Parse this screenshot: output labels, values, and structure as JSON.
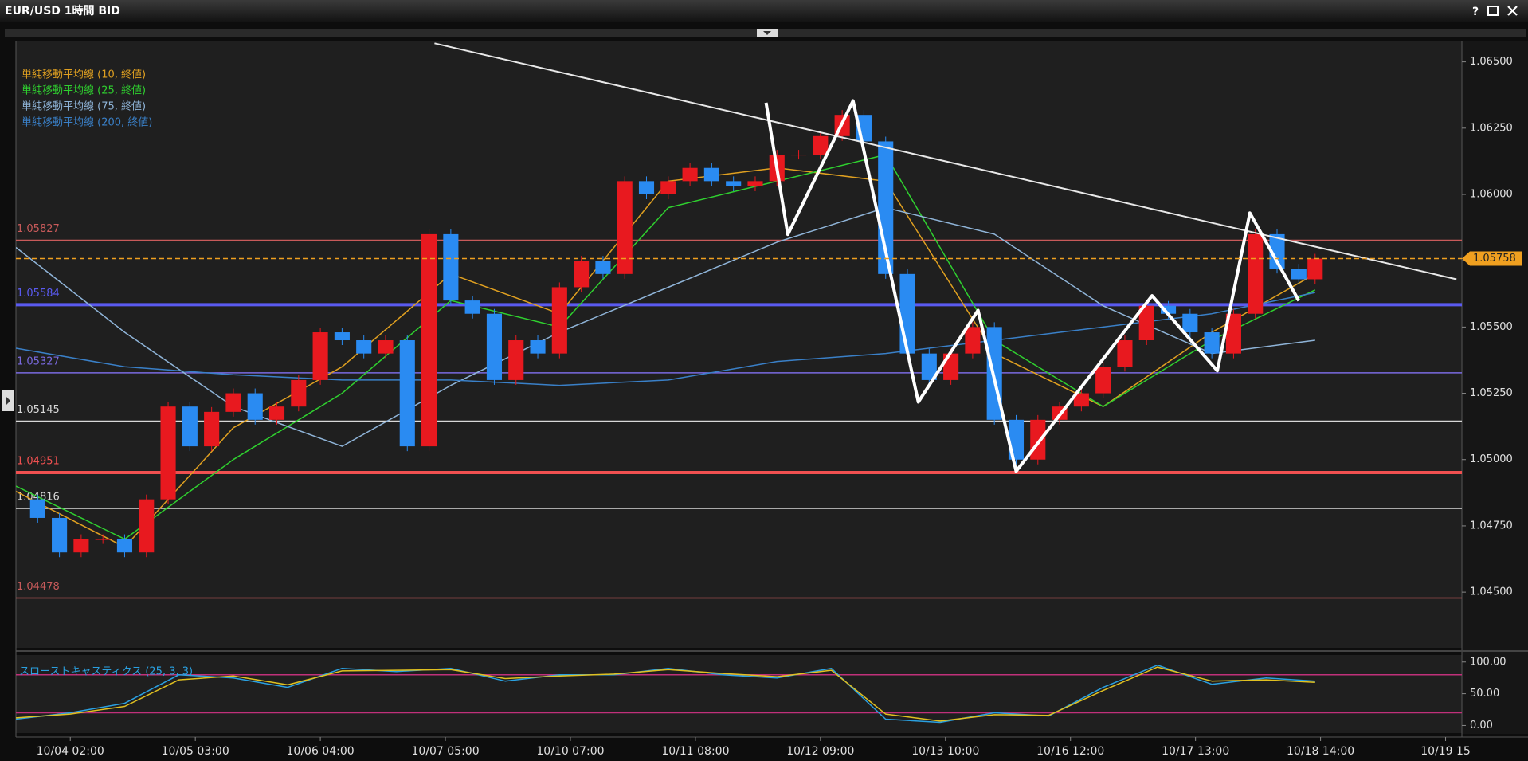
{
  "help_button": "?",
  "chart_data": {
    "type": "candlestick",
    "title": "EUR/USD 1時間 BID",
    "up_color": "#e8191f",
    "down_color": "#2a8bf2",
    "xlim": [
      0,
      266
    ],
    "xticks": [
      {
        "value": 10,
        "label": "10/04 02:00"
      },
      {
        "value": 33,
        "label": "10/05 03:00"
      },
      {
        "value": 56,
        "label": "10/06 04:00"
      },
      {
        "value": 79,
        "label": "10/07 05:00"
      },
      {
        "value": 102,
        "label": "10/10 07:00"
      },
      {
        "value": 125,
        "label": "10/11 08:00"
      },
      {
        "value": 148,
        "label": "10/12 09:00"
      },
      {
        "value": 171,
        "label": "10/13 10:00"
      },
      {
        "value": 194,
        "label": "10/16 12:00"
      },
      {
        "value": 217,
        "label": "10/17 13:00"
      },
      {
        "value": 240,
        "label": "10/18 14:00"
      },
      {
        "value": 263,
        "label": "10/19 15"
      }
    ],
    "ylim": [
      1.0429,
      1.0658
    ],
    "yticks": [
      {
        "value": 1.065,
        "label": "1.06500"
      },
      {
        "value": 1.0625,
        "label": "1.06250"
      },
      {
        "value": 1.06,
        "label": "1.06000"
      },
      {
        "value": 1.0575,
        "label": "1.05750"
      },
      {
        "value": 1.055,
        "label": "1.05500"
      },
      {
        "value": 1.0525,
        "label": "1.05250"
      },
      {
        "value": 1.05,
        "label": "1.05000"
      },
      {
        "value": 1.0475,
        "label": "1.04750"
      },
      {
        "value": 1.045,
        "label": "1.04500"
      }
    ],
    "x": [
      0,
      4,
      8,
      12,
      16,
      20,
      24,
      28,
      32,
      36,
      40,
      44,
      48,
      52,
      56,
      60,
      64,
      68,
      72,
      76,
      80,
      84,
      88,
      92,
      96,
      100,
      104,
      108,
      112,
      116,
      120,
      124,
      128,
      132,
      136,
      140,
      144,
      148,
      152,
      156,
      160,
      164,
      168,
      172,
      176,
      180,
      184,
      188,
      192,
      196,
      200,
      204,
      208,
      212,
      216,
      220,
      224,
      228,
      232,
      236,
      239
    ],
    "values": [
      1.0485,
      1.0478,
      1.0465,
      1.047,
      1.047,
      1.0465,
      1.0485,
      1.052,
      1.0505,
      1.0518,
      1.0525,
      1.0515,
      1.052,
      1.053,
      1.0548,
      1.0545,
      1.054,
      1.0545,
      1.0505,
      1.0585,
      1.056,
      1.0555,
      1.053,
      1.0545,
      1.054,
      1.0565,
      1.0575,
      1.057,
      1.0605,
      1.06,
      1.0605,
      1.061,
      1.0605,
      1.0603,
      1.0605,
      1.0615,
      1.0615,
      1.0622,
      1.063,
      1.062,
      1.057,
      1.054,
      1.053,
      1.054,
      1.055,
      1.0515,
      1.05,
      1.0515,
      1.052,
      1.0525,
      1.0535,
      1.0545,
      1.0558,
      1.0555,
      1.0548,
      1.054,
      1.0555,
      1.0585,
      1.0572,
      1.0568,
      1.05758
    ],
    "last_price": 1.05758,
    "last_color": "#f0a020",
    "moving_averages": [
      {
        "name": "単純移動平均線 (10, 終値)",
        "color": "#e0a020",
        "x": [
          0,
          20,
          40,
          60,
          80,
          100,
          120,
          140,
          160,
          180,
          200,
          220,
          239
        ],
        "values": [
          1.0488,
          1.0467,
          1.0512,
          1.0535,
          1.057,
          1.0555,
          1.0605,
          1.061,
          1.0605,
          1.054,
          1.052,
          1.0548,
          1.057
        ]
      },
      {
        "name": "単純移動平均線 (25, 終値)",
        "color": "#2fd02f",
        "x": [
          0,
          20,
          40,
          60,
          80,
          100,
          120,
          140,
          160,
          180,
          200,
          220,
          239
        ],
        "values": [
          1.049,
          1.047,
          1.05,
          1.0525,
          1.056,
          1.055,
          1.0595,
          1.0605,
          1.0615,
          1.0545,
          1.052,
          1.0545,
          1.0564
        ]
      },
      {
        "name": "単純移動平均線 (75, 終値)",
        "color": "#8fb4d8",
        "x": [
          0,
          20,
          40,
          60,
          80,
          100,
          120,
          140,
          160,
          180,
          200,
          220,
          239
        ],
        "values": [
          1.058,
          1.0548,
          1.052,
          1.0505,
          1.0528,
          1.0548,
          1.0565,
          1.0582,
          1.0595,
          1.0585,
          1.0558,
          1.054,
          1.0545
        ]
      },
      {
        "name": "単純移動平均線 (200, 終値)",
        "color": "#3a80c8",
        "x": [
          0,
          20,
          40,
          60,
          80,
          100,
          120,
          140,
          160,
          180,
          200,
          220,
          239
        ],
        "values": [
          1.0542,
          1.0535,
          1.0532,
          1.053,
          1.053,
          1.0528,
          1.053,
          1.0537,
          1.054,
          1.0545,
          1.055,
          1.0555,
          1.0563
        ]
      }
    ],
    "levels": [
      {
        "value": 1.05827,
        "color": "#c85a5a",
        "width": 1.5
      },
      {
        "value": 1.05584,
        "color": "#5a5af0",
        "width": 4
      },
      {
        "value": 1.05327,
        "color": "#7a6ae0",
        "width": 1.5
      },
      {
        "value": 1.05145,
        "color": "#d8d8d8",
        "width": 1.5
      },
      {
        "value": 1.04951,
        "color": "#f05050",
        "width": 4
      },
      {
        "value": 1.04816,
        "color": "#d8d8d8",
        "width": 1.5
      },
      {
        "value": 1.04478,
        "color": "#c85a5a",
        "width": 1.5
      }
    ],
    "trendlines": [
      {
        "color": "#e8e8e8",
        "width": 2,
        "x": [
          77,
          265
        ],
        "values": [
          1.0657,
          1.0568
        ]
      },
      {
        "color": "#ffffff",
        "width": 4,
        "x": [
          138,
          142,
          154,
          166,
          177,
          184,
          209,
          221,
          227,
          236
        ],
        "values": [
          1.06346,
          1.05849,
          1.06353,
          1.05217,
          1.05563,
          1.04956,
          1.05618,
          1.05335,
          1.0593,
          1.05599
        ]
      }
    ],
    "stochastic": {
      "title": "スローストキャスティクス (25, 3, 3)",
      "ylim": [
        -12,
        111
      ],
      "yticks": [
        {
          "value": 100,
          "label": "100.00"
        },
        {
          "value": 50,
          "label": "50.00"
        },
        {
          "value": 0,
          "label": "0.00"
        }
      ],
      "levels": [
        80,
        20
      ],
      "level_color": "#c0307a",
      "series": [
        {
          "color": "#2aa0e0",
          "x": [
            0,
            10,
            20,
            30,
            40,
            50,
            60,
            70,
            80,
            90,
            100,
            110,
            120,
            130,
            140,
            150,
            160,
            170,
            180,
            190,
            200,
            210,
            220,
            230,
            239
          ],
          "values": [
            10,
            20,
            35,
            80,
            75,
            60,
            90,
            85,
            90,
            70,
            80,
            80,
            90,
            80,
            75,
            90,
            10,
            5,
            20,
            15,
            60,
            95,
            65,
            75,
            70
          ]
        },
        {
          "color": "#e0c020",
          "x": [
            0,
            10,
            20,
            30,
            40,
            50,
            60,
            70,
            80,
            90,
            100,
            110,
            120,
            130,
            140,
            150,
            160,
            170,
            180,
            190,
            200,
            210,
            220,
            230,
            239
          ],
          "values": [
            12,
            18,
            30,
            72,
            78,
            64,
            86,
            87,
            88,
            74,
            78,
            81,
            88,
            82,
            77,
            87,
            18,
            7,
            17,
            16,
            55,
            92,
            70,
            72,
            68
          ]
        }
      ]
    }
  }
}
